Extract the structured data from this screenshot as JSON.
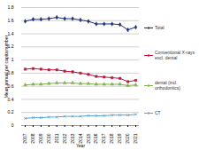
{
  "chart_data": {
    "type": "line",
    "x_label": "Year",
    "y_label": "Mean annual per capita number",
    "x": [
      2007,
      2008,
      2009,
      2010,
      2011,
      2012,
      2013,
      2014,
      2015,
      2016,
      2017,
      2018,
      2019,
      2020,
      2021
    ],
    "xlim": [
      2007,
      2021
    ],
    "xticks": [
      2007,
      2008,
      2009,
      2010,
      2011,
      2012,
      2013,
      2014,
      2015,
      2016,
      2017,
      2018,
      2019,
      2020,
      2021
    ],
    "ylim": [
      0,
      1.8
    ],
    "yticks": [
      0,
      0.2,
      0.4,
      0.6,
      0.8,
      1,
      1.2,
      1.4,
      1.6,
      1.8
    ],
    "grid": true,
    "legend": "right",
    "series": [
      {
        "name": "Total",
        "color": "#1f2f7a",
        "marker": "diamond",
        "values": [
          1.59,
          1.62,
          1.62,
          1.63,
          1.65,
          1.63,
          1.63,
          1.61,
          1.59,
          1.55,
          1.55,
          1.55,
          1.54,
          1.46,
          1.5
        ]
      },
      {
        "name": "Conventional X-rays excl. dental",
        "color": "#c0143c",
        "marker": "square",
        "values": [
          0.86,
          0.87,
          0.86,
          0.85,
          0.85,
          0.83,
          0.82,
          0.8,
          0.78,
          0.75,
          0.74,
          0.73,
          0.72,
          0.67,
          0.69
        ]
      },
      {
        "name": "dental (incl. orthodontics)",
        "color": "#7fb24a",
        "marker": "triangle",
        "values": [
          0.62,
          0.63,
          0.63,
          0.64,
          0.65,
          0.65,
          0.65,
          0.64,
          0.64,
          0.63,
          0.63,
          0.63,
          0.63,
          0.61,
          0.62
        ]
      },
      {
        "name": "CT",
        "color": "#5ba3d9",
        "marker": "times",
        "values": [
          0.11,
          0.12,
          0.12,
          0.13,
          0.13,
          0.14,
          0.14,
          0.14,
          0.15,
          0.15,
          0.15,
          0.16,
          0.16,
          0.16,
          0.17
        ]
      }
    ]
  }
}
